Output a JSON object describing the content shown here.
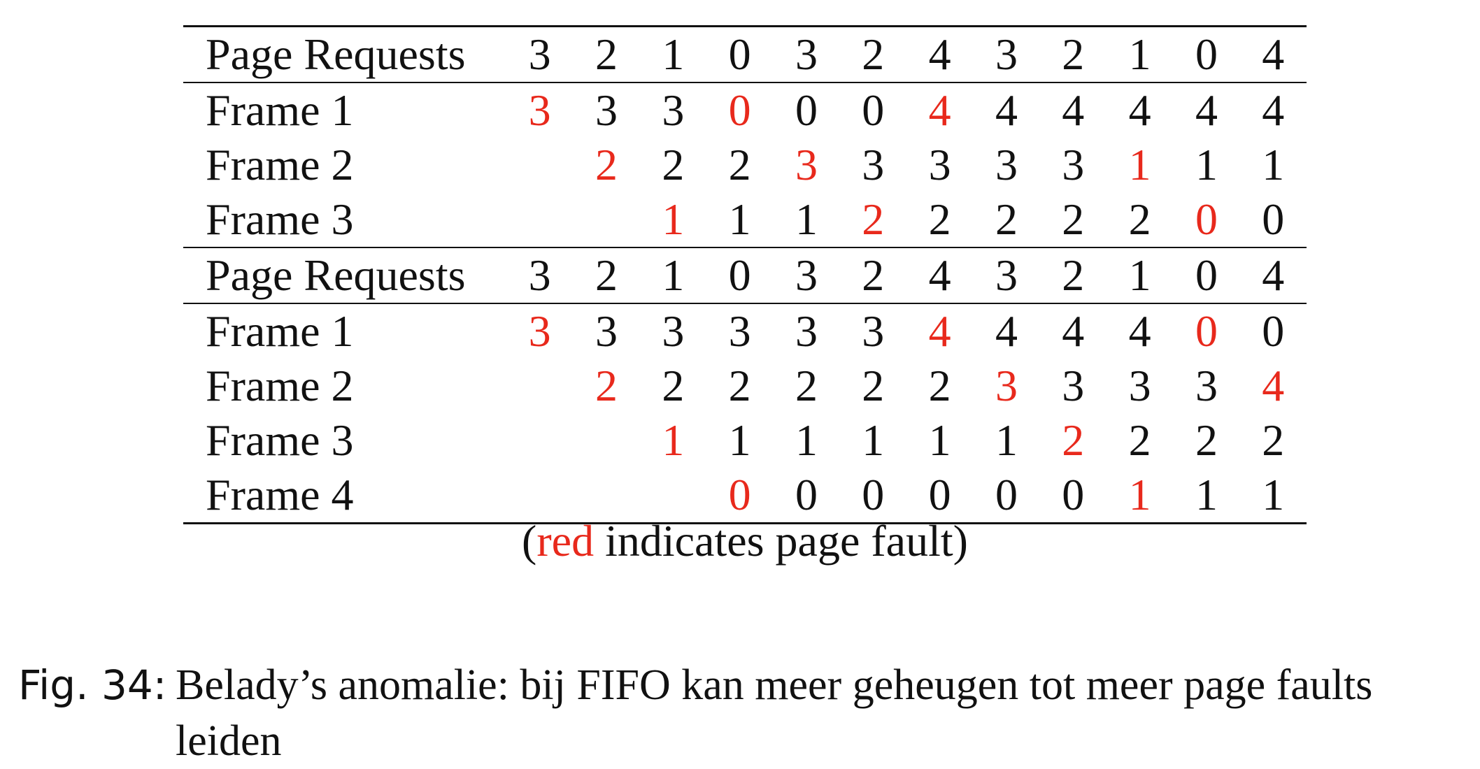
{
  "fault_color": "#e8291c",
  "tables": [
    {
      "header_label": "Page Requests",
      "requests": [
        "3",
        "2",
        "1",
        "0",
        "3",
        "2",
        "4",
        "3",
        "2",
        "1",
        "0",
        "4"
      ],
      "frames": [
        {
          "label": "Frame 1",
          "cells": [
            {
              "v": "3",
              "fault": true
            },
            {
              "v": "3",
              "fault": false
            },
            {
              "v": "3",
              "fault": false
            },
            {
              "v": "0",
              "fault": true
            },
            {
              "v": "0",
              "fault": false
            },
            {
              "v": "0",
              "fault": false
            },
            {
              "v": "4",
              "fault": true
            },
            {
              "v": "4",
              "fault": false
            },
            {
              "v": "4",
              "fault": false
            },
            {
              "v": "4",
              "fault": false
            },
            {
              "v": "4",
              "fault": false
            },
            {
              "v": "4",
              "fault": false
            }
          ]
        },
        {
          "label": "Frame 2",
          "cells": [
            {
              "v": "",
              "fault": false
            },
            {
              "v": "2",
              "fault": true
            },
            {
              "v": "2",
              "fault": false
            },
            {
              "v": "2",
              "fault": false
            },
            {
              "v": "3",
              "fault": true
            },
            {
              "v": "3",
              "fault": false
            },
            {
              "v": "3",
              "fault": false
            },
            {
              "v": "3",
              "fault": false
            },
            {
              "v": "3",
              "fault": false
            },
            {
              "v": "1",
              "fault": true
            },
            {
              "v": "1",
              "fault": false
            },
            {
              "v": "1",
              "fault": false
            }
          ]
        },
        {
          "label": "Frame 3",
          "cells": [
            {
              "v": "",
              "fault": false
            },
            {
              "v": "",
              "fault": false
            },
            {
              "v": "1",
              "fault": true
            },
            {
              "v": "1",
              "fault": false
            },
            {
              "v": "1",
              "fault": false
            },
            {
              "v": "2",
              "fault": true
            },
            {
              "v": "2",
              "fault": false
            },
            {
              "v": "2",
              "fault": false
            },
            {
              "v": "2",
              "fault": false
            },
            {
              "v": "2",
              "fault": false
            },
            {
              "v": "0",
              "fault": true
            },
            {
              "v": "0",
              "fault": false
            }
          ]
        }
      ]
    },
    {
      "header_label": "Page Requests",
      "requests": [
        "3",
        "2",
        "1",
        "0",
        "3",
        "2",
        "4",
        "3",
        "2",
        "1",
        "0",
        "4"
      ],
      "frames": [
        {
          "label": "Frame 1",
          "cells": [
            {
              "v": "3",
              "fault": true
            },
            {
              "v": "3",
              "fault": false
            },
            {
              "v": "3",
              "fault": false
            },
            {
              "v": "3",
              "fault": false
            },
            {
              "v": "3",
              "fault": false
            },
            {
              "v": "3",
              "fault": false
            },
            {
              "v": "4",
              "fault": true
            },
            {
              "v": "4",
              "fault": false
            },
            {
              "v": "4",
              "fault": false
            },
            {
              "v": "4",
              "fault": false
            },
            {
              "v": "0",
              "fault": true
            },
            {
              "v": "0",
              "fault": false
            }
          ]
        },
        {
          "label": "Frame 2",
          "cells": [
            {
              "v": "",
              "fault": false
            },
            {
              "v": "2",
              "fault": true
            },
            {
              "v": "2",
              "fault": false
            },
            {
              "v": "2",
              "fault": false
            },
            {
              "v": "2",
              "fault": false
            },
            {
              "v": "2",
              "fault": false
            },
            {
              "v": "2",
              "fault": false
            },
            {
              "v": "3",
              "fault": true
            },
            {
              "v": "3",
              "fault": false
            },
            {
              "v": "3",
              "fault": false
            },
            {
              "v": "3",
              "fault": false
            },
            {
              "v": "4",
              "fault": true
            }
          ]
        },
        {
          "label": "Frame 3",
          "cells": [
            {
              "v": "",
              "fault": false
            },
            {
              "v": "",
              "fault": false
            },
            {
              "v": "1",
              "fault": true
            },
            {
              "v": "1",
              "fault": false
            },
            {
              "v": "1",
              "fault": false
            },
            {
              "v": "1",
              "fault": false
            },
            {
              "v": "1",
              "fault": false
            },
            {
              "v": "1",
              "fault": false
            },
            {
              "v": "2",
              "fault": true
            },
            {
              "v": "2",
              "fault": false
            },
            {
              "v": "2",
              "fault": false
            },
            {
              "v": "2",
              "fault": false
            }
          ]
        },
        {
          "label": "Frame 4",
          "cells": [
            {
              "v": "",
              "fault": false
            },
            {
              "v": "",
              "fault": false
            },
            {
              "v": "",
              "fault": false
            },
            {
              "v": "0",
              "fault": true
            },
            {
              "v": "0",
              "fault": false
            },
            {
              "v": "0",
              "fault": false
            },
            {
              "v": "0",
              "fault": false
            },
            {
              "v": "0",
              "fault": false
            },
            {
              "v": "0",
              "fault": false
            },
            {
              "v": "1",
              "fault": true
            },
            {
              "v": "1",
              "fault": false
            },
            {
              "v": "1",
              "fault": false
            }
          ]
        }
      ]
    }
  ],
  "legend": {
    "open": "(",
    "red_word": "red",
    "rest": " indicates page fault)"
  },
  "caption": {
    "label": "Fig. 34:",
    "text": "Belady’s anomalie: bij FIFO kan meer geheugen tot meer page faults leiden"
  }
}
